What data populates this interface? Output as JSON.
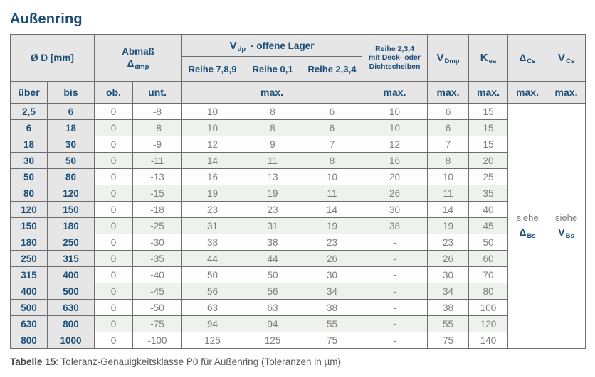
{
  "title": "Außenring",
  "colors": {
    "navy": "#1a4e78",
    "header_bg": "#e6e6e6",
    "stripe_green": "#edf3ec",
    "data_text": "#7d7d7d",
    "border": "#6e6e6e"
  },
  "header": {
    "d_label": "Ø D  [mm]",
    "abmass_line1": "Abmaß",
    "abmass_sym": "Δ",
    "abmass_sub": "dmp",
    "vdp_sym": "V",
    "vdp_sub": "dp",
    "vdp_rest": "-  offene Lager",
    "reihe789": "Reihe 7,8,9",
    "reihe01": "Reihe 0,1",
    "reihe234": "Reihe 2,3,4",
    "deck_line1": "Reihe 2,3,4",
    "deck_line2": "mit Deck- oder",
    "deck_line3": "Dichtscheiben",
    "vdmp_sym": "V",
    "vdmp_sub": "Dmp",
    "kea_sym": "K",
    "kea_sub": "ea",
    "dcs_sym": "Δ",
    "dcs_sub": "Cs",
    "vcs_sym": "V",
    "vcs_sub": "Cs",
    "ueber": "über",
    "bis": "bis",
    "ob": "ob.",
    "unt": "unt.",
    "max": "max."
  },
  "table": {
    "see": {
      "dcs": {
        "pre": "siehe",
        "sym": "Δ",
        "sub": "Bs"
      },
      "vcs": {
        "pre": "siehe",
        "sym": "V",
        "sub": "Bs"
      }
    },
    "rows": [
      {
        "ueber": "2,5",
        "bis": "6",
        "ob": "0",
        "unt": "-8",
        "r789": "10",
        "r01": "8",
        "r234": "6",
        "deck": "10",
        "vdmp": "6",
        "kea": "15"
      },
      {
        "ueber": "6",
        "bis": "18",
        "ob": "0",
        "unt": "-8",
        "r789": "10",
        "r01": "8",
        "r234": "6",
        "deck": "10",
        "vdmp": "6",
        "kea": "15"
      },
      {
        "ueber": "18",
        "bis": "30",
        "ob": "0",
        "unt": "-9",
        "r789": "12",
        "r01": "9",
        "r234": "7",
        "deck": "12",
        "vdmp": "7",
        "kea": "15"
      },
      {
        "ueber": "30",
        "bis": "50",
        "ob": "0",
        "unt": "-11",
        "r789": "14",
        "r01": "11",
        "r234": "8",
        "deck": "16",
        "vdmp": "8",
        "kea": "20"
      },
      {
        "ueber": "50",
        "bis": "80",
        "ob": "0",
        "unt": "-13",
        "r789": "16",
        "r01": "13",
        "r234": "10",
        "deck": "20",
        "vdmp": "10",
        "kea": "25"
      },
      {
        "ueber": "80",
        "bis": "120",
        "ob": "0",
        "unt": "-15",
        "r789": "19",
        "r01": "19",
        "r234": "11",
        "deck": "26",
        "vdmp": "11",
        "kea": "35"
      },
      {
        "ueber": "120",
        "bis": "150",
        "ob": "0",
        "unt": "-18",
        "r789": "23",
        "r01": "23",
        "r234": "14",
        "deck": "30",
        "vdmp": "14",
        "kea": "40"
      },
      {
        "ueber": "150",
        "bis": "180",
        "ob": "0",
        "unt": "-25",
        "r789": "31",
        "r01": "31",
        "r234": "19",
        "deck": "38",
        "vdmp": "19",
        "kea": "45"
      },
      {
        "ueber": "180",
        "bis": "250",
        "ob": "0",
        "unt": "-30",
        "r789": "38",
        "r01": "38",
        "r234": "23",
        "deck": "-",
        "vdmp": "23",
        "kea": "50"
      },
      {
        "ueber": "250",
        "bis": "315",
        "ob": "0",
        "unt": "-35",
        "r789": "44",
        "r01": "44",
        "r234": "26",
        "deck": "-",
        "vdmp": "26",
        "kea": "60"
      },
      {
        "ueber": "315",
        "bis": "400",
        "ob": "0",
        "unt": "-40",
        "r789": "50",
        "r01": "50",
        "r234": "30",
        "deck": "-",
        "vdmp": "30",
        "kea": "70"
      },
      {
        "ueber": "400",
        "bis": "500",
        "ob": "0",
        "unt": "-45",
        "r789": "56",
        "r01": "56",
        "r234": "34",
        "deck": "-",
        "vdmp": "34",
        "kea": "80"
      },
      {
        "ueber": "500",
        "bis": "630",
        "ob": "0",
        "unt": "-50",
        "r789": "63",
        "r01": "63",
        "r234": "38",
        "deck": "-",
        "vdmp": "38",
        "kea": "100"
      },
      {
        "ueber": "630",
        "bis": "800",
        "ob": "0",
        "unt": "-75",
        "r789": "94",
        "r01": "94",
        "r234": "55",
        "deck": "-",
        "vdmp": "55",
        "kea": "120"
      },
      {
        "ueber": "800",
        "bis": "1000",
        "ob": "0",
        "unt": "-100",
        "r789": "125",
        "r01": "125",
        "r234": "75",
        "deck": "-",
        "vdmp": "75",
        "kea": "140"
      }
    ]
  },
  "caption": {
    "label": "Tabelle 15",
    "text": ": Toleranz-Genauigkeitsklasse P0 für Außenring (Toleranzen in µm)"
  }
}
